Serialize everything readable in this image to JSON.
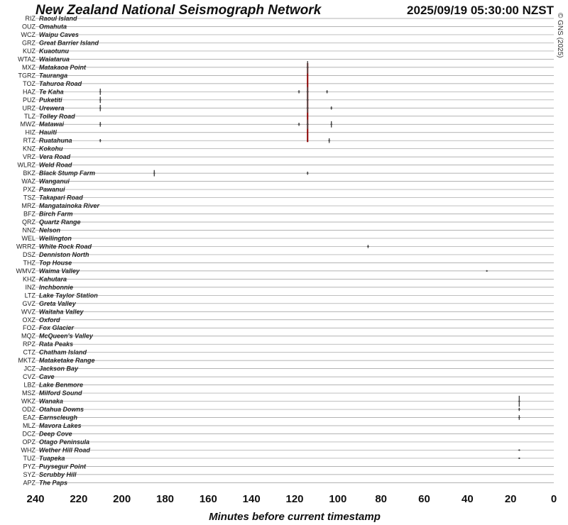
{
  "header": {
    "title": "New Zealand National Seismograph Network",
    "timestamp": "2025/09/19 05:30:00 NZST",
    "copyright": "© GNS (2025)"
  },
  "chart_data": {
    "type": "line",
    "title": "New Zealand National Seismograph Network",
    "xlabel": "Minutes before current timestamp",
    "x_ticks": [
      240,
      220,
      200,
      180,
      160,
      140,
      120,
      100,
      80,
      60,
      40,
      20,
      0
    ],
    "xlim": [
      240,
      0
    ],
    "grid": false,
    "trace_color": "#444444",
    "marker_color": "#8b0000",
    "stations": [
      {
        "code": "RIZ",
        "name": "Raoul Island"
      },
      {
        "code": "OUZ",
        "name": "Omahuta"
      },
      {
        "code": "WCZ",
        "name": "Waipu Caves"
      },
      {
        "code": "GRZ",
        "name": "Great Barrier Island"
      },
      {
        "code": "KUZ",
        "name": "Kuaotunu"
      },
      {
        "code": "WTAZ",
        "name": "Waiatarua"
      },
      {
        "code": "MXZ",
        "name": "Matakaoa Point"
      },
      {
        "code": "TGRZ",
        "name": "Tauranga"
      },
      {
        "code": "TOZ",
        "name": "Tahuroa Road"
      },
      {
        "code": "HAZ",
        "name": "Te Kaha"
      },
      {
        "code": "PUZ",
        "name": "Puketiti"
      },
      {
        "code": "URZ",
        "name": "Urewera"
      },
      {
        "code": "TLZ",
        "name": "Tolley Road"
      },
      {
        "code": "MWZ",
        "name": "Matawai"
      },
      {
        "code": "HIZ",
        "name": "Hauiti"
      },
      {
        "code": "RTZ",
        "name": "Ruatahuna"
      },
      {
        "code": "KNZ",
        "name": "Kokohu"
      },
      {
        "code": "VRZ",
        "name": "Vera Road"
      },
      {
        "code": "WLRZ",
        "name": "Weld Road"
      },
      {
        "code": "BKZ",
        "name": "Black Stump Farm"
      },
      {
        "code": "WAZ",
        "name": "Wanganui"
      },
      {
        "code": "PXZ",
        "name": "Pawanui"
      },
      {
        "code": "TSZ",
        "name": "Takapari Road"
      },
      {
        "code": "MRZ",
        "name": "Mangatainoka River"
      },
      {
        "code": "BFZ",
        "name": "Birch Farm"
      },
      {
        "code": "QRZ",
        "name": "Quartz Range"
      },
      {
        "code": "NNZ",
        "name": "Nelson"
      },
      {
        "code": "WEL",
        "name": "Wellington"
      },
      {
        "code": "WRRZ",
        "name": "White Rock Road"
      },
      {
        "code": "DSZ",
        "name": "Denniston North"
      },
      {
        "code": "THZ",
        "name": "Top House"
      },
      {
        "code": "WMVZ",
        "name": "Waima Valley"
      },
      {
        "code": "KHZ",
        "name": "Kahutara"
      },
      {
        "code": "INZ",
        "name": "Inchbonnie"
      },
      {
        "code": "LTZ",
        "name": "Lake Taylor Station"
      },
      {
        "code": "GVZ",
        "name": "Greta Valley"
      },
      {
        "code": "WVZ",
        "name": "Waitaha Valley"
      },
      {
        "code": "OXZ",
        "name": "Oxford"
      },
      {
        "code": "FOZ",
        "name": "Fox Glacier"
      },
      {
        "code": "MQZ",
        "name": "McQueen's Valley"
      },
      {
        "code": "RPZ",
        "name": "Rata Peaks"
      },
      {
        "code": "CTZ",
        "name": "Chatham Island"
      },
      {
        "code": "MKTZ",
        "name": "Mataketake Range"
      },
      {
        "code": "JCZ",
        "name": "Jackson Bay"
      },
      {
        "code": "CVZ",
        "name": "Cave"
      },
      {
        "code": "LBZ",
        "name": "Lake Benmore"
      },
      {
        "code": "MSZ",
        "name": "Milford Sound"
      },
      {
        "code": "WKZ",
        "name": "Wanaka"
      },
      {
        "code": "ODZ",
        "name": "Otahua Downs"
      },
      {
        "code": "EAZ",
        "name": "Earnscleugh"
      },
      {
        "code": "MLZ",
        "name": "Mavora Lakes"
      },
      {
        "code": "DCZ",
        "name": "Deep Cove"
      },
      {
        "code": "OPZ",
        "name": "Otago Peninsula"
      },
      {
        "code": "WHZ",
        "name": "Wether Hill Road"
      },
      {
        "code": "TUZ",
        "name": "Tuapeka"
      },
      {
        "code": "PYZ",
        "name": "Puysegur Point"
      },
      {
        "code": "SYZ",
        "name": "Scrubby Hill"
      },
      {
        "code": "APZ",
        "name": "The Paps"
      }
    ],
    "event_marker": {
      "minutes_before": 114,
      "stations": [
        "MXZ",
        "TGRZ",
        "TOZ",
        "HAZ",
        "PUZ",
        "URZ",
        "TLZ",
        "MWZ",
        "HIZ",
        "RTZ"
      ]
    },
    "bursts": [
      {
        "code": "MXZ",
        "minutes_before": 114,
        "amplitude": 4
      },
      {
        "code": "HAZ",
        "minutes_before": 210,
        "amplitude": 2
      },
      {
        "code": "HAZ",
        "minutes_before": 114,
        "amplitude": 3
      },
      {
        "code": "HAZ",
        "minutes_before": 118,
        "amplitude": 1
      },
      {
        "code": "HAZ",
        "minutes_before": 105,
        "amplitude": 1
      },
      {
        "code": "PUZ",
        "minutes_before": 210,
        "amplitude": 2
      },
      {
        "code": "PUZ",
        "minutes_before": 114,
        "amplitude": 3
      },
      {
        "code": "URZ",
        "minutes_before": 210,
        "amplitude": 2
      },
      {
        "code": "URZ",
        "minutes_before": 114,
        "amplitude": 3
      },
      {
        "code": "URZ",
        "minutes_before": 103,
        "amplitude": 1
      },
      {
        "code": "MWZ",
        "minutes_before": 210,
        "amplitude": 1.5
      },
      {
        "code": "MWZ",
        "minutes_before": 114,
        "amplitude": 3
      },
      {
        "code": "MWZ",
        "minutes_before": 118,
        "amplitude": 1
      },
      {
        "code": "MWZ",
        "minutes_before": 103,
        "amplitude": 2
      },
      {
        "code": "RTZ",
        "minutes_before": 210,
        "amplitude": 1
      },
      {
        "code": "RTZ",
        "minutes_before": 104,
        "amplitude": 1.5
      },
      {
        "code": "BKZ",
        "minutes_before": 185,
        "amplitude": 2
      },
      {
        "code": "BKZ",
        "minutes_before": 114,
        "amplitude": 1
      },
      {
        "code": "WRRZ",
        "minutes_before": 86,
        "amplitude": 1
      },
      {
        "code": "WMVZ",
        "minutes_before": 31,
        "amplitude": 0.5
      },
      {
        "code": "WKZ",
        "minutes_before": 16,
        "amplitude": 3.5
      },
      {
        "code": "ODZ",
        "minutes_before": 16,
        "amplitude": 1
      },
      {
        "code": "EAZ",
        "minutes_before": 16,
        "amplitude": 1.5
      },
      {
        "code": "WHZ",
        "minutes_before": 16,
        "amplitude": 0.5
      },
      {
        "code": "TUZ",
        "minutes_before": 16,
        "amplitude": 0.5
      }
    ]
  }
}
